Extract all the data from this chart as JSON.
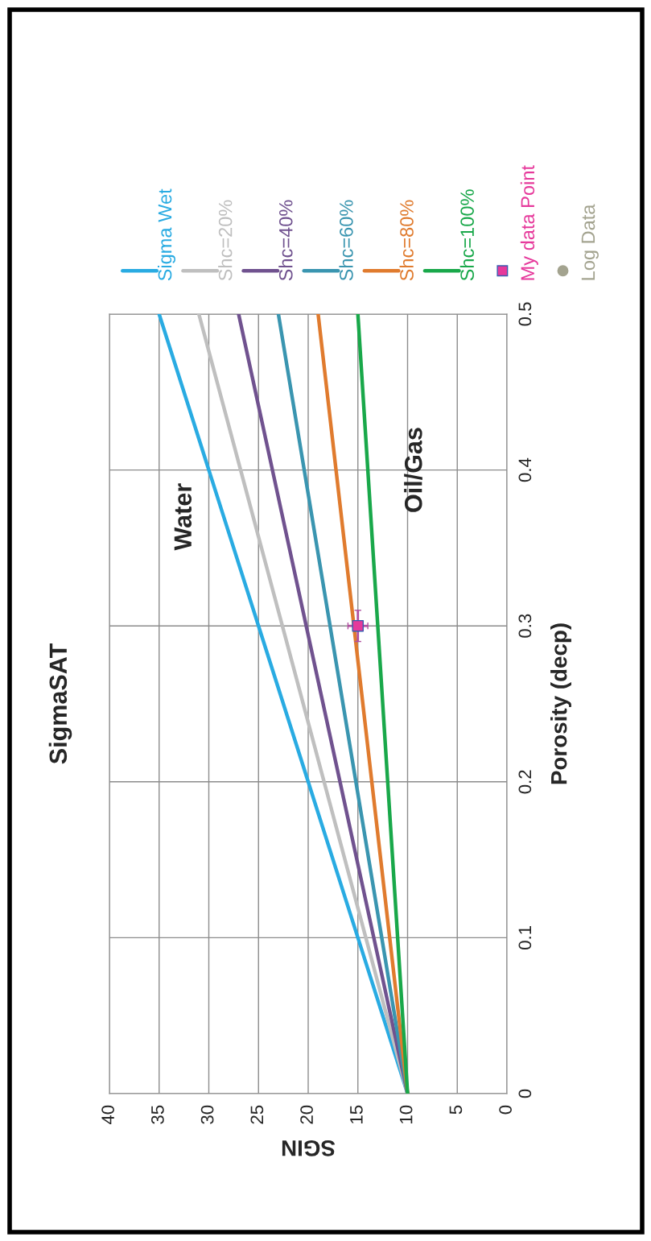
{
  "chart_data": {
    "type": "line",
    "title": "SigmaSAT",
    "xlabel": "SGIN",
    "ylabel": "Porosity (decp)",
    "xlim": [
      40,
      0
    ],
    "xticks": [
      40,
      35,
      30,
      25,
      20,
      15,
      10,
      5,
      0
    ],
    "ylim": [
      0,
      0.5
    ],
    "yticks": [
      0,
      0.1,
      0.2,
      0.3,
      0.4,
      0.5
    ],
    "grid": true,
    "legend": "top",
    "series": [
      {
        "name": "Sigma Wet",
        "color": "#29abe2",
        "x": [
          10,
          15,
          20,
          25,
          30,
          35
        ],
        "values": [
          0,
          0.1,
          0.2,
          0.3,
          0.4,
          0.5
        ]
      },
      {
        "name": "Shc=20%",
        "color": "#bfbfbf",
        "x": [
          10,
          14.2,
          18.4,
          22.6,
          26.8,
          31
        ],
        "values": [
          0,
          0.1,
          0.2,
          0.3,
          0.4,
          0.5
        ]
      },
      {
        "name": "Shc=40%",
        "color": "#70528f",
        "x": [
          10,
          13.4,
          16.8,
          20.2,
          23.6,
          27
        ],
        "values": [
          0,
          0.1,
          0.2,
          0.3,
          0.4,
          0.5
        ]
      },
      {
        "name": "Shc=60%",
        "color": "#3a95b0",
        "x": [
          10,
          12.6,
          15.2,
          17.8,
          20.4,
          23
        ],
        "values": [
          0,
          0.1,
          0.2,
          0.3,
          0.4,
          0.5
        ]
      },
      {
        "name": "Shc=80%",
        "color": "#e07b2e",
        "x": [
          10,
          11.8,
          13.6,
          15.4,
          17.2,
          19
        ],
        "values": [
          0,
          0.1,
          0.2,
          0.3,
          0.4,
          0.5
        ]
      },
      {
        "name": "Shc=100%",
        "color": "#19a84a",
        "x": [
          10,
          11,
          12,
          13,
          14,
          15
        ],
        "values": [
          0,
          0.1,
          0.2,
          0.3,
          0.4,
          0.5
        ]
      },
      {
        "name": "My data Point",
        "type": "scatter",
        "marker": "square",
        "color": "#e6399b",
        "x": [
          15
        ],
        "values": [
          0.3
        ],
        "errors": [
          0.01
        ],
        "xerrors": [
          1
        ]
      },
      {
        "name": "Log Data",
        "type": "scatter",
        "marker": "circle",
        "color": "#a3a38f"
      }
    ],
    "annotations": [
      "Water",
      "Oil/Gas"
    ]
  }
}
